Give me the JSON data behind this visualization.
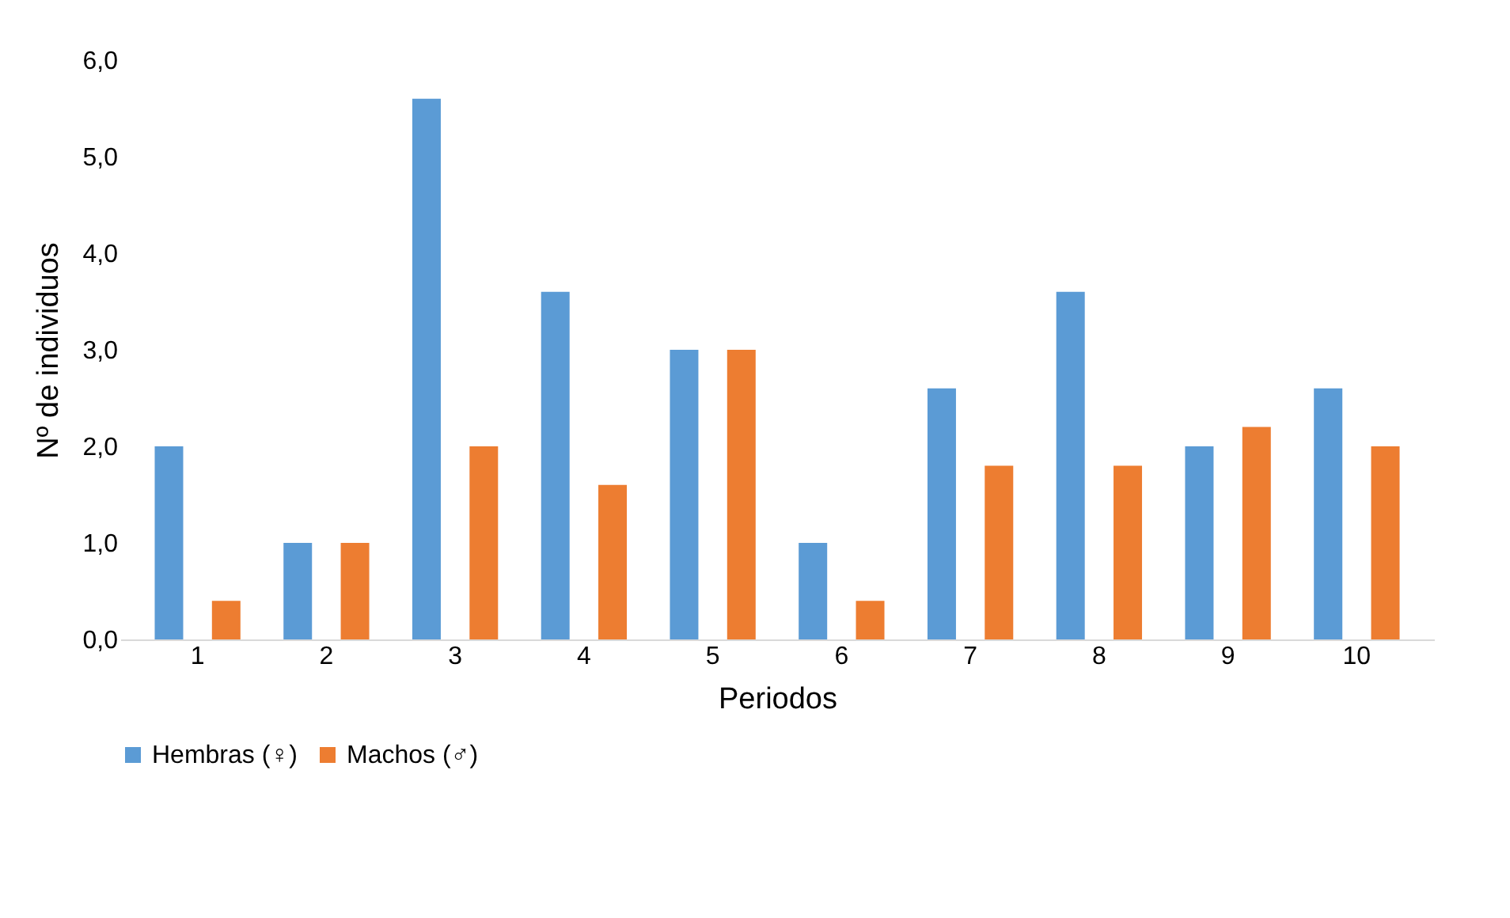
{
  "chart_data": {
    "type": "bar",
    "xlabel": "Periodos",
    "ylabel": "Nº de individuos",
    "categories": [
      "1",
      "2",
      "3",
      "4",
      "5",
      "6",
      "7",
      "8",
      "9",
      "10"
    ],
    "series": [
      {
        "name": "Hembras (♀)",
        "color": "#5b9bd5",
        "values": [
          2,
          1,
          5.6,
          3.6,
          3,
          1,
          2.6,
          3.6,
          2,
          2.6
        ]
      },
      {
        "name": "Machos (♂)",
        "color": "#ed7d31",
        "values": [
          0.4,
          1,
          2,
          1.6,
          3,
          0.4,
          1.8,
          1.8,
          2.2,
          2
        ]
      }
    ],
    "ylim": [
      0,
      6
    ],
    "yticks": [
      {
        "value": 0,
        "label": "0,0"
      },
      {
        "value": 1,
        "label": "1,0"
      },
      {
        "value": 2,
        "label": "2,0"
      },
      {
        "value": 3,
        "label": "3,0"
      },
      {
        "value": 4,
        "label": "4,0"
      },
      {
        "value": 5,
        "label": "5,0"
      },
      {
        "value": 6,
        "label": "6,0"
      }
    ],
    "grid": false,
    "legend": "bottom"
  }
}
